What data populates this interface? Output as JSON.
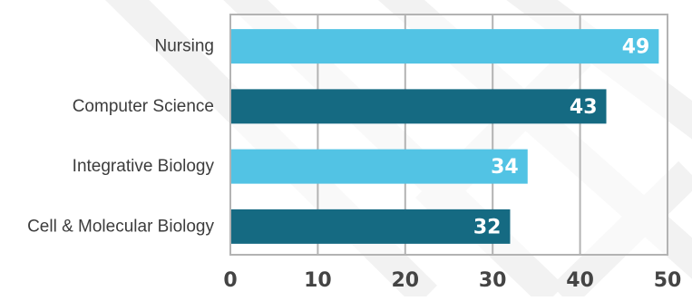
{
  "chart_data": {
    "type": "bar",
    "orientation": "horizontal",
    "categories": [
      "Nursing",
      "Computer Science",
      "Integrative Biology",
      "Cell & Molecular Biology"
    ],
    "values": [
      49,
      43,
      34,
      32
    ],
    "data_labels": [
      "49",
      "43",
      "34",
      "32"
    ],
    "xlim": [
      0,
      50
    ],
    "x_ticks": [
      0,
      10,
      20,
      30,
      40,
      50
    ],
    "x_tick_labels": [
      "0",
      "10",
      "20",
      "30",
      "40",
      "50"
    ],
    "grid": true,
    "title": "",
    "xlabel": "",
    "ylabel": "",
    "colors": {
      "bar_light": "#52c3e4",
      "bar_dark": "#156a82"
    },
    "bar_color_pattern": [
      "light",
      "dark",
      "light",
      "dark"
    ]
  }
}
